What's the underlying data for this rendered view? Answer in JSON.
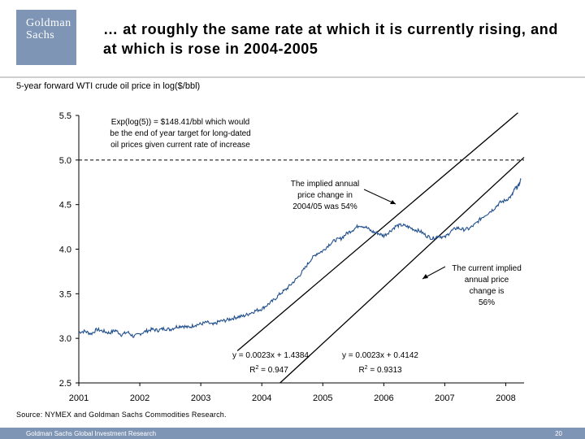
{
  "header": {
    "logo_line1": "Goldman",
    "logo_line2": "Sachs",
    "title": "… at roughly the same rate at which it is currently rising, and at which is rose in 2004-2005"
  },
  "footer": {
    "source": "Source: NYMEX and Goldman Sachs Commodities Research.",
    "left": "Goldman Sachs Global Investment Research",
    "page_number": "20"
  },
  "colors": {
    "series": "#1f4e8c",
    "trend": "#000000",
    "logo_bg": "#7f95b5"
  },
  "chart_data": {
    "type": "line",
    "title": "5-year forward WTI crude oil price in log($/bbl)",
    "xlabel": "",
    "ylabel": "",
    "xlim": [
      2001,
      2008.3
    ],
    "ylim": [
      2.5,
      5.5
    ],
    "yticks": [
      "5.5",
      "5.0",
      "4.5",
      "4.0",
      "3.5",
      "3.0",
      "2.5"
    ],
    "xticks": [
      "2001",
      "2002",
      "2003",
      "2004",
      "2005",
      "2006",
      "2007",
      "2008"
    ],
    "reference_line": {
      "y": 5.0,
      "style": "dashed"
    },
    "series": [
      {
        "name": "5-year forward WTI crude oil price (log)",
        "points": [
          [
            2001.0,
            3.07
          ],
          [
            2001.1,
            3.08
          ],
          [
            2001.2,
            3.05
          ],
          [
            2001.3,
            3.1
          ],
          [
            2001.4,
            3.08
          ],
          [
            2001.5,
            3.06
          ],
          [
            2001.6,
            3.09
          ],
          [
            2001.7,
            3.04
          ],
          [
            2001.8,
            3.07
          ],
          [
            2001.9,
            3.02
          ],
          [
            2002.0,
            3.05
          ],
          [
            2002.1,
            3.08
          ],
          [
            2002.2,
            3.1
          ],
          [
            2002.3,
            3.09
          ],
          [
            2002.4,
            3.11
          ],
          [
            2002.5,
            3.1
          ],
          [
            2002.6,
            3.13
          ],
          [
            2002.7,
            3.14
          ],
          [
            2002.8,
            3.12
          ],
          [
            2002.9,
            3.15
          ],
          [
            2003.0,
            3.16
          ],
          [
            2003.1,
            3.18
          ],
          [
            2003.2,
            3.15
          ],
          [
            2003.3,
            3.19
          ],
          [
            2003.4,
            3.2
          ],
          [
            2003.5,
            3.22
          ],
          [
            2003.6,
            3.24
          ],
          [
            2003.7,
            3.25
          ],
          [
            2003.8,
            3.28
          ],
          [
            2003.9,
            3.31
          ],
          [
            2004.0,
            3.33
          ],
          [
            2004.1,
            3.38
          ],
          [
            2004.2,
            3.43
          ],
          [
            2004.3,
            3.5
          ],
          [
            2004.4,
            3.55
          ],
          [
            2004.5,
            3.62
          ],
          [
            2004.6,
            3.69
          ],
          [
            2004.7,
            3.78
          ],
          [
            2004.8,
            3.88
          ],
          [
            2004.9,
            3.95
          ],
          [
            2005.0,
            3.98
          ],
          [
            2005.1,
            4.05
          ],
          [
            2005.2,
            4.1
          ],
          [
            2005.3,
            4.12
          ],
          [
            2005.4,
            4.18
          ],
          [
            2005.5,
            4.22
          ],
          [
            2005.6,
            4.27
          ],
          [
            2005.7,
            4.25
          ],
          [
            2005.8,
            4.2
          ],
          [
            2005.9,
            4.18
          ],
          [
            2006.0,
            4.15
          ],
          [
            2006.1,
            4.2
          ],
          [
            2006.2,
            4.26
          ],
          [
            2006.3,
            4.27
          ],
          [
            2006.4,
            4.25
          ],
          [
            2006.5,
            4.22
          ],
          [
            2006.6,
            4.2
          ],
          [
            2006.7,
            4.15
          ],
          [
            2006.8,
            4.12
          ],
          [
            2006.9,
            4.15
          ],
          [
            2007.0,
            4.13
          ],
          [
            2007.1,
            4.2
          ],
          [
            2007.2,
            4.24
          ],
          [
            2007.3,
            4.22
          ],
          [
            2007.4,
            4.23
          ],
          [
            2007.5,
            4.28
          ],
          [
            2007.6,
            4.35
          ],
          [
            2007.7,
            4.4
          ],
          [
            2007.8,
            4.45
          ],
          [
            2007.9,
            4.52
          ],
          [
            2008.0,
            4.55
          ],
          [
            2008.1,
            4.6
          ],
          [
            2008.15,
            4.68
          ],
          [
            2008.2,
            4.7
          ],
          [
            2008.25,
            4.78
          ]
        ]
      }
    ],
    "trendlines": [
      {
        "name": "The implied annual price change in 2004/05 was 54%",
        "x": [
          2003.6,
          2008.2
        ],
        "y": [
          2.86,
          5.53
        ]
      },
      {
        "name": "The current implied annual price change is 56%",
        "x": [
          2004.3,
          2008.3
        ],
        "y": [
          2.5,
          5.03
        ]
      }
    ],
    "annotations": {
      "exp_note": [
        "Exp(log(5)) = $148.41/bbl which would",
        "be the end of year target for long-dated",
        "oil prices given current rate of increase"
      ],
      "implied_2004": [
        "The implied annual",
        "price change in",
        "2004/05 was 54%"
      ],
      "current_implied": [
        "The current implied",
        "annual price",
        "change is",
        "56%"
      ],
      "eq1": "y = 0.0023x + 1.4384",
      "r2_1": "R",
      "r2_1_value": " = 0.947",
      "eq2": "y = 0.0023x + 0.4142",
      "r2_2": "R",
      "r2_2_value": " = 0.9313",
      "squared": "2"
    }
  }
}
